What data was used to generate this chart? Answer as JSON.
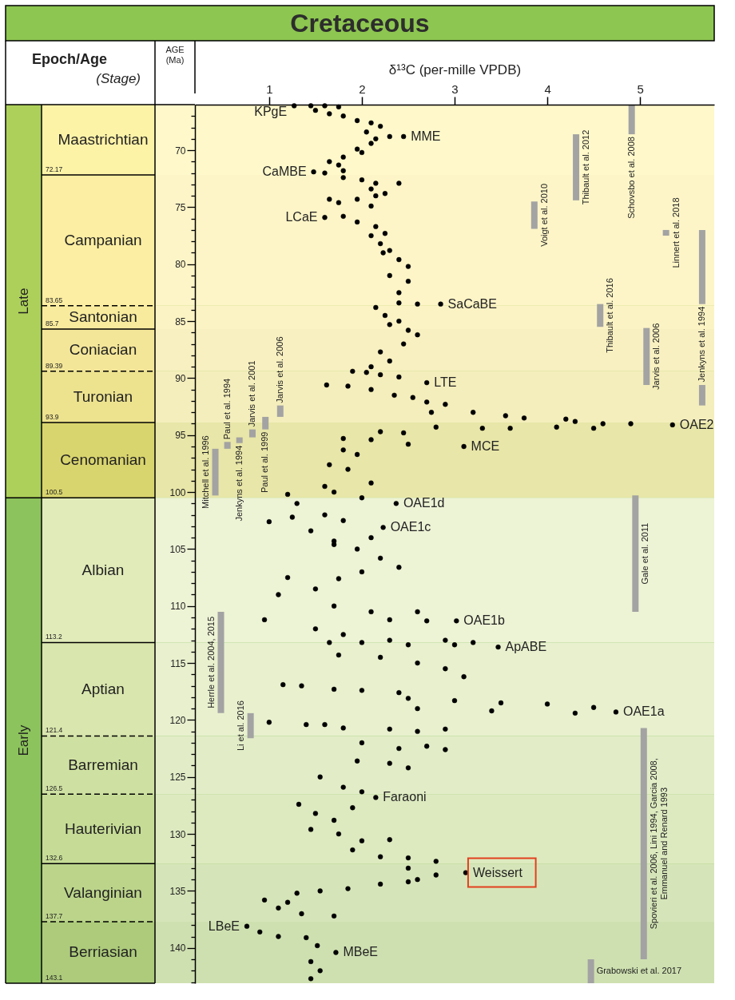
{
  "chart_data": {
    "type": "scatter",
    "title": "Cretaceous",
    "xlabel": "δ¹³C (per-mille VPDB)",
    "ylabel": "AGE (Ma)",
    "xlim": [
      0.2,
      5.8
    ],
    "xticks": [
      1,
      2,
      3,
      4,
      5
    ],
    "ylim": [
      143.1,
      66
    ],
    "yticks": [
      {
        "value": 67,
        "label": null
      },
      {
        "value": 68,
        "label": null
      },
      {
        "value": 69,
        "label": null
      },
      70,
      {
        "value": 71,
        "label": null
      },
      {
        "value": 72,
        "label": null
      },
      {
        "value": 73,
        "label": null
      },
      {
        "value": 74,
        "label": null
      },
      75,
      {
        "value": 76,
        "label": null
      },
      {
        "value": 77,
        "label": null
      },
      {
        "value": 78,
        "label": null
      },
      {
        "value": 79,
        "label": null
      },
      80,
      {
        "value": 81,
        "label": null
      },
      {
        "value": 82,
        "label": null
      },
      {
        "value": 83,
        "label": null
      },
      {
        "value": 84,
        "label": null
      },
      85,
      {
        "value": 86,
        "label": null
      },
      {
        "value": 87,
        "label": null
      },
      {
        "value": 88,
        "label": null
      },
      {
        "value": 89,
        "label": null
      },
      90,
      {
        "value": 91,
        "label": null
      },
      {
        "value": 92,
        "label": null
      },
      {
        "value": 93,
        "label": null
      },
      {
        "value": 94,
        "label": null
      },
      95,
      {
        "value": 96,
        "label": null
      },
      {
        "value": 97,
        "label": null
      },
      {
        "value": 98,
        "label": null
      },
      {
        "value": 99,
        "label": null
      },
      100,
      {
        "value": 101,
        "label": null
      },
      {
        "value": 102,
        "label": null
      },
      {
        "value": 103,
        "label": null
      },
      {
        "value": 104,
        "label": null
      },
      105,
      {
        "value": 106,
        "label": null
      },
      {
        "value": 107,
        "label": null
      },
      {
        "value": 108,
        "label": null
      },
      {
        "value": 109,
        "label": null
      },
      110,
      {
        "value": 111,
        "label": null
      },
      {
        "value": 112,
        "label": null
      },
      {
        "value": 113,
        "label": null
      },
      {
        "value": 114,
        "label": null
      },
      115,
      {
        "value": 116,
        "label": null
      },
      {
        "value": 117,
        "label": null
      },
      {
        "value": 118,
        "label": null
      },
      {
        "value": 119,
        "label": null
      },
      120,
      {
        "value": 121,
        "label": null
      },
      {
        "value": 122,
        "label": null
      },
      {
        "value": 123,
        "label": null
      },
      {
        "value": 124,
        "label": null
      },
      125,
      {
        "value": 126,
        "label": null
      },
      {
        "value": 127,
        "label": null
      },
      {
        "value": 128,
        "label": null
      },
      {
        "value": 129,
        "label": null
      },
      130,
      {
        "value": 131,
        "label": null
      },
      {
        "value": 132,
        "label": null
      },
      {
        "value": 133,
        "label": null
      },
      {
        "value": 134,
        "label": null
      },
      135,
      {
        "value": 136,
        "label": null
      },
      {
        "value": 137,
        "label": null
      },
      {
        "value": 138,
        "label": null
      },
      {
        "value": 139,
        "label": null
      },
      140,
      {
        "value": 141,
        "label": null
      },
      {
        "value": 142,
        "label": null
      },
      {
        "value": 143,
        "label": null
      }
    ],
    "grid": false,
    "marker": "circle",
    "series": [
      {
        "color": "#000000",
        "x": [
          1.27,
          1.45,
          1.6,
          1.75,
          1.5,
          1.65,
          1.8,
          1.95,
          2.1,
          2.2,
          2.05,
          2.3,
          2.45,
          2.15,
          2.1,
          1.95,
          2.0,
          1.8,
          1.65,
          1.75,
          1.48,
          1.6,
          1.8,
          1.8,
          2.0,
          2.15,
          2.4,
          2.1,
          2.25,
          1.95,
          2.15,
          1.65,
          1.75,
          2.1,
          1.6,
          1.8,
          1.95,
          2.15,
          2.25,
          2.1,
          2.2,
          2.3,
          2.23,
          2.4,
          2.5,
          2.3,
          2.5,
          2.4,
          2.15,
          2.85,
          2.4,
          2.6,
          2.25,
          2.4,
          2.3,
          2.5,
          2.6,
          2.45,
          2.2,
          2.3,
          2.1,
          1.9,
          2.05,
          2.2,
          2.4,
          2.7,
          1.62,
          1.85,
          2.1,
          2.35,
          2.55,
          2.7,
          2.9,
          3.2,
          2.75,
          3.55,
          3.75,
          4.2,
          4.3,
          4.6,
          4.9,
          5.35,
          4.1,
          4.5,
          2.8,
          3.3,
          3.6,
          2.2,
          2.45,
          1.8,
          2.1,
          2.5,
          3.1,
          1.8,
          1.95,
          1.65,
          1.85,
          2.1,
          1.6,
          1.7,
          2.0,
          2.37,
          1.2,
          1.3,
          1.25,
          1.0,
          1.6,
          1.8,
          2.23,
          1.45,
          1.7,
          2.1,
          1.7,
          1.95,
          2.2,
          2.4,
          2.0,
          1.2,
          1.5,
          1.75,
          1.1,
          1.7,
          2.1,
          2.6,
          0.95,
          3.02,
          2.3,
          2.7,
          1.5,
          1.8,
          2.3,
          2.9,
          3.2,
          1.65,
          2.0,
          2.5,
          3.0,
          3.47,
          1.75,
          2.2,
          2.6,
          2.9,
          3.1,
          1.15,
          1.35,
          1.7,
          2.0,
          2.4,
          2.5,
          3.0,
          3.5,
          4.0,
          4.5,
          2.6,
          3.4,
          4.3,
          4.74,
          1.0,
          1.4,
          1.6,
          1.8,
          2.3,
          2.6,
          2.9,
          2.0,
          2.4,
          2.7,
          2.9,
          1.95,
          2.3,
          2.5,
          1.55,
          1.8,
          2.0,
          2.15,
          1.32,
          1.5,
          1.7,
          1.9,
          1.45,
          1.75,
          2.0,
          2.3,
          1.9,
          2.2,
          2.5,
          2.8,
          2.5,
          2.8,
          3.12,
          2.6,
          2.2,
          2.5,
          1.3,
          1.55,
          1.85,
          0.95,
          1.2,
          1.1,
          1.35,
          1.7,
          0.76,
          0.9,
          1.1,
          1.4,
          1.52,
          1.72,
          1.45,
          1.55,
          1.45
        ],
        "values": [
          66.1,
          66.1,
          66.1,
          66.2,
          66.5,
          66.8,
          67.0,
          67.4,
          67.6,
          67.9,
          68.4,
          68.8,
          68.8,
          69.0,
          69.4,
          69.9,
          70.2,
          70.6,
          71.0,
          71.3,
          71.9,
          72.0,
          71.8,
          72.4,
          72.6,
          72.9,
          72.9,
          73.4,
          73.8,
          74.3,
          74.0,
          74.3,
          74.6,
          74.9,
          75.9,
          75.8,
          76.3,
          76.7,
          77.3,
          77.5,
          78.2,
          78.8,
          79.0,
          79.6,
          80.2,
          81.0,
          81.5,
          82.5,
          83.8,
          83.5,
          83.4,
          83.5,
          84.5,
          85.0,
          85.3,
          85.8,
          86.2,
          87.0,
          87.7,
          88.5,
          89.0,
          89.4,
          89.5,
          89.7,
          89.9,
          90.4,
          90.6,
          90.7,
          91.0,
          91.5,
          91.7,
          92.1,
          92.3,
          93.0,
          93.0,
          93.3,
          93.5,
          93.6,
          93.8,
          94.0,
          94.0,
          94.1,
          94.3,
          94.4,
          94.3,
          94.4,
          94.4,
          94.7,
          94.8,
          95.3,
          95.4,
          95.8,
          96.0,
          96.3,
          96.7,
          97.6,
          98.0,
          99.2,
          99.5,
          100.0,
          100.5,
          101.0,
          100.2,
          101.0,
          102.2,
          102.6,
          102.0,
          102.5,
          103.1,
          103.4,
          104.3,
          104.0,
          104.6,
          105.0,
          105.8,
          106.6,
          107.0,
          107.5,
          108.5,
          107.6,
          109.0,
          110.0,
          110.5,
          110.5,
          111.2,
          111.3,
          111.2,
          111.3,
          112.0,
          112.5,
          113.0,
          113.0,
          113.2,
          113.2,
          113.2,
          113.4,
          113.4,
          113.6,
          114.3,
          114.5,
          115.0,
          115.5,
          116.2,
          116.9,
          117.0,
          117.3,
          117.4,
          117.6,
          118.1,
          118.3,
          118.5,
          118.6,
          118.9,
          119.0,
          119.2,
          119.4,
          119.3,
          120.2,
          120.4,
          120.4,
          120.7,
          120.8,
          121.0,
          120.8,
          122.0,
          122.5,
          122.3,
          122.6,
          123.6,
          123.8,
          124.2,
          125.0,
          125.9,
          126.3,
          126.8,
          127.4,
          128.2,
          128.8,
          127.7,
          129.6,
          130.0,
          130.6,
          130.5,
          131.4,
          132.0,
          132.1,
          132.4,
          133.0,
          133.6,
          133.4,
          134.0,
          134.4,
          134.2,
          135.2,
          135.0,
          134.8,
          135.8,
          136.0,
          136.5,
          137.0,
          137.2,
          138.1,
          138.6,
          139.0,
          139.1,
          139.8,
          140.4,
          141.2,
          142.0,
          142.7
        ]
      },
      {
        "type": "bar",
        "name": "Mitchell et al. 1996",
        "color": "#a3a3a3",
        "x": [
          0.42
        ],
        "base": [
          96.2
        ],
        "values": [
          4.1
        ]
      },
      {
        "type": "bar",
        "name": "Herrle et al. 2004, 2015",
        "color": "#a3a3a3",
        "x": [
          0.48
        ],
        "base": [
          110.5
        ],
        "values": [
          8.9
        ]
      },
      {
        "type": "bar",
        "name": "Paul et al. 1994",
        "color": "#a3a3a3",
        "x": [
          0.55
        ],
        "base": [
          95.6
        ],
        "values": [
          0.6
        ]
      },
      {
        "type": "bar",
        "name": "Jenkyns et al. 1994",
        "color": "#a3a3a3",
        "x": [
          0.68
        ],
        "base": [
          95.2
        ],
        "values": [
          0.5
        ]
      },
      {
        "type": "bar",
        "name": "Li et al. 2016",
        "color": "#a3a3a3",
        "x": [
          0.8
        ],
        "base": [
          119.4
        ],
        "values": [
          2.2
        ]
      },
      {
        "type": "bar",
        "name": "Jarvis et al. 2001",
        "color": "#a3a3a3",
        "x": [
          0.82
        ],
        "base": [
          94.5
        ],
        "values": [
          0.7
        ]
      },
      {
        "type": "bar",
        "name": "Paul et al. 1999",
        "color": "#a3a3a3",
        "x": [
          0.96
        ],
        "base": [
          93.4
        ],
        "values": [
          1.1
        ]
      },
      {
        "type": "bar",
        "name": "Jarvis et al. 2006",
        "color": "#a3a3a3",
        "x": [
          1.12
        ],
        "base": [
          92.4
        ],
        "values": [
          1.0
        ]
      },
      {
        "type": "bar",
        "name": "Voigt et al. 2010",
        "color": "#a3a3a3",
        "x": [
          3.86
        ],
        "base": [
          74.5
        ],
        "values": [
          2.4
        ]
      },
      {
        "type": "bar",
        "name": "Thibault et al. 2012",
        "color": "#a3a3a3",
        "x": [
          4.31
        ],
        "base": [
          68.6
        ],
        "values": [
          5.8
        ]
      },
      {
        "type": "bar",
        "name": "Grabowski et al. 2017",
        "color": "#a3a3a3",
        "x": [
          4.47
        ],
        "base": [
          141.0
        ],
        "values": [
          2.1
        ]
      },
      {
        "type": "bar",
        "name": "Thibault et al. 2016",
        "color": "#a3a3a3",
        "x": [
          4.57
        ],
        "base": [
          83.5
        ],
        "values": [
          2.0
        ]
      },
      {
        "type": "bar",
        "name": "Schovsbo et al. 2008",
        "color": "#a3a3a3",
        "x": [
          4.91
        ],
        "base": [
          66
        ],
        "values": [
          2.6
        ]
      },
      {
        "type": "bar",
        "name": "Gale et al. 2011",
        "color": "#a3a3a3",
        "x": [
          4.95
        ],
        "base": [
          100.3
        ],
        "values": [
          10.2
        ]
      },
      {
        "type": "bar",
        "name": "Spovieri et al. 2006, Lini 1994, Garcia 2008,\nEmmanuel and Renard 1993",
        "color": "#a3a3a3",
        "x": [
          5.04
        ],
        "base": [
          120.7
        ],
        "values": [
          20.3
        ]
      },
      {
        "type": "bar",
        "name": "Jarvis et al. 2006",
        "color": "#a3a3a3",
        "x": [
          5.07
        ],
        "base": [
          85.6
        ],
        "values": [
          5.0
        ]
      },
      {
        "type": "bar",
        "name": "Linnert et al. 2018",
        "color": "#a3a3a3",
        "x": [
          5.28
        ],
        "base": [
          77.0
        ],
        "values": [
          0.5
        ]
      },
      {
        "type": "bar",
        "name": "Jenkyns et al. 1994",
        "color": "#a3a3a3",
        "x": [
          5.67,
          5.67
        ],
        "base": [
          77.0,
          90.6
        ],
        "values": [
          6.5,
          1.8
        ]
      }
    ],
    "bands": [
      {
        "axis": "y",
        "from": 66,
        "to": 100.5,
        "label": "Late",
        "color": "#add05a"
      },
      {
        "axis": "y",
        "from": 100.5,
        "to": 143.1,
        "label": "Early",
        "color": "#8cc35c"
      },
      {
        "axis": "y",
        "from": 66,
        "to": 72.17,
        "label": "Maastrichtian",
        "color": "#fef8ca"
      },
      {
        "axis": "y",
        "from": 72.17,
        "to": 83.65,
        "label": "Campanian",
        "color": "#fdf5c7"
      },
      {
        "axis": "y",
        "from": 83.65,
        "to": 85.7,
        "label": "Santonian",
        "color": "#fbf3c4"
      },
      {
        "axis": "y",
        "from": 85.7,
        "to": 89.39,
        "label": "Coniacian",
        "color": "#f8f0c1"
      },
      {
        "axis": "y",
        "from": 89.39,
        "to": 93.9,
        "label": "Turonian",
        "color": "#f4eebc"
      },
      {
        "axis": "y",
        "from": 93.9,
        "to": 100.5,
        "label": "Cenomanian",
        "color": "#e8e6a8"
      },
      {
        "axis": "y",
        "from": 100.5,
        "to": 113.2,
        "label": "Albian",
        "color": "#edf3d5"
      },
      {
        "axis": "y",
        "from": 113.2,
        "to": 121.4,
        "label": "Aptian",
        "color": "#e8f0ce"
      },
      {
        "axis": "y",
        "from": 121.4,
        "to": 126.5,
        "label": "Barremian",
        "color": "#e2edc7"
      },
      {
        "axis": "y",
        "from": 126.5,
        "to": 132.6,
        "label": "Hauterivian",
        "color": "#ddeac0"
      },
      {
        "axis": "y",
        "from": 132.6,
        "to": 137.7,
        "label": "Valanginian",
        "color": "#d6e5b9"
      },
      {
        "axis": "y",
        "from": 137.7,
        "to": 143.1,
        "label": "Berriasian",
        "color": "#cee0b0"
      }
    ],
    "ref_lines": [
      {
        "axis": "y",
        "value": 72.17,
        "label": "72.17"
      },
      {
        "axis": "y",
        "value": 83.65,
        "label": "83.65",
        "line_style": "dashed"
      },
      {
        "axis": "y",
        "value": 85.7,
        "label": "85.7"
      },
      {
        "axis": "y",
        "value": 89.39,
        "label": "89.39",
        "line_style": "dashed"
      },
      {
        "axis": "y",
        "value": 93.9,
        "label": "93.9"
      },
      {
        "axis": "y",
        "value": 100.5,
        "label": "100.5"
      },
      {
        "axis": "y",
        "value": 113.2,
        "label": "113.2"
      },
      {
        "axis": "y",
        "value": 121.4,
        "label": "121.4",
        "line_style": "dashed"
      },
      {
        "axis": "y",
        "value": 126.5,
        "label": "126.5",
        "line_style": "dashed"
      },
      {
        "axis": "y",
        "value": 132.6,
        "label": "132.6"
      },
      {
        "axis": "y",
        "value": 137.7,
        "label": "137.7",
        "line_style": "dashed"
      },
      {
        "axis": "y",
        "value": 143.1,
        "label": "143.1"
      }
    ],
    "annotations": [
      "Epoch/Age",
      "(Stage)",
      {
        "text": "KPgE",
        "x": 1.27,
        "y": 66.1
      },
      {
        "text": "MME",
        "x": 2.45,
        "y": 68.8
      },
      {
        "text": "CaMBE",
        "x": 1.48,
        "y": 71.9
      },
      {
        "text": "LCaE",
        "x": 1.6,
        "y": 75.9
      },
      {
        "text": "SaCaBE",
        "x": 2.85,
        "y": 83.5
      },
      {
        "text": "LTE",
        "x": 2.7,
        "y": 90.4
      },
      {
        "text": "OAE2",
        "x": 5.35,
        "y": 94.1
      },
      {
        "text": "MCE",
        "x": 3.1,
        "y": 96.0
      },
      {
        "text": "OAE1d",
        "x": 2.37,
        "y": 101.0
      },
      {
        "text": "OAE1c",
        "x": 2.23,
        "y": 103.1
      },
      {
        "text": "OAE1b",
        "x": 3.02,
        "y": 111.3
      },
      {
        "text": "ApABE",
        "x": 3.47,
        "y": 113.6
      },
      {
        "text": "OAE1a",
        "x": 4.74,
        "y": 119.3
      },
      {
        "text": "Faraoni",
        "x": 2.15,
        "y": 126.8
      },
      {
        "text": "Weissert",
        "x": 3.12,
        "y": 133.4
      },
      {
        "text": "LBeE",
        "x": 0.76,
        "y": 138.1
      },
      {
        "text": "MBeE",
        "x": 1.72,
        "y": 140.4
      }
    ]
  }
}
